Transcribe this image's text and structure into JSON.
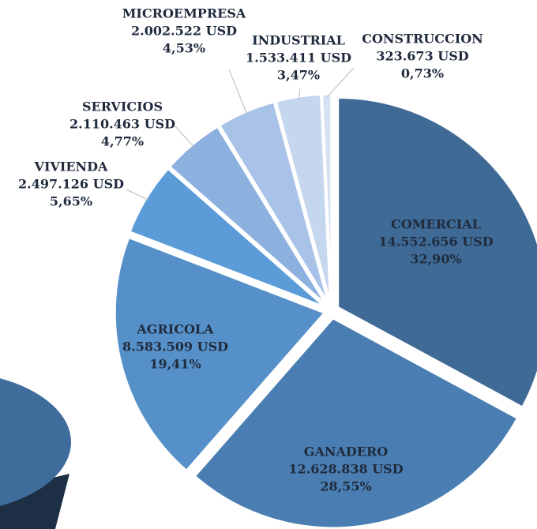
{
  "chart_data": {
    "type": "pie",
    "categories": [
      "COMERCIAL",
      "GANADERO",
      "AGRICOLA",
      "VIVIENDA",
      "SERVICIOS",
      "MICROEMPRESA",
      "INDUSTRIAL",
      "CONSTRUCCION"
    ],
    "amounts": [
      "14.552.656 USD",
      "12.628.838 USD",
      "8.583.509 USD",
      "2.497.126 USD",
      "2.110.463 USD",
      "2.002.522 USD",
      "1.533.411 USD",
      "323.673 USD"
    ],
    "values": [
      32.9,
      28.55,
      19.41,
      5.65,
      4.77,
      4.53,
      3.47,
      0.73
    ],
    "value_labels": [
      "32,90%",
      "28,55%",
      "19,41%",
      "5,65%",
      "4,77%",
      "4,53%",
      "3,47%",
      "0,73%"
    ],
    "colors": [
      "#3f6a96",
      "#4a7eb2",
      "#5690c8",
      "#5b9bd8",
      "#8db1df",
      "#a9c3e8",
      "#c5d6ef",
      "#d6e2f3"
    ]
  }
}
